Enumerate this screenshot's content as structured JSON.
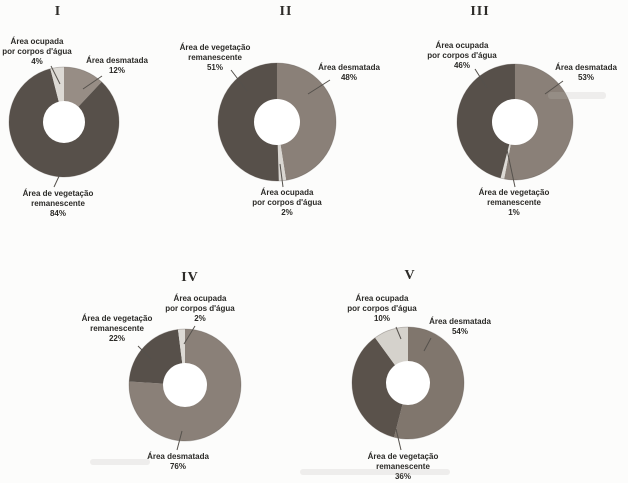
{
  "page": {
    "background": "#fcfcfb",
    "categories": [
      "Área desmatada",
      "Área de vegetação remanescente",
      "Área ocupada por corpos d'água"
    ]
  },
  "chart_data": [
    {
      "type": "donut",
      "title": "I",
      "unit": "%",
      "slices": [
        {
          "label": "Área desmatada",
          "value": 12,
          "color": "#978d85"
        },
        {
          "label": "Área de vegetação remanescente",
          "value": 84,
          "color": "#57504a"
        },
        {
          "label": "Área ocupada por corpos d'água",
          "value": 4,
          "color": "#dcd9d4"
        }
      ],
      "callouts": [
        {
          "text": "Área ocupada\npor corpos d'água\n4%"
        },
        {
          "text": "Área desmatada\n12%"
        },
        {
          "text": "Área de vegetação\nremanescente\n84%"
        }
      ]
    },
    {
      "type": "donut",
      "title": "II",
      "unit": "%",
      "slices": [
        {
          "label": "Área desmatada",
          "value": 48,
          "color": "#8a8078"
        },
        {
          "label": "Área ocupada por corpos d'água",
          "value": 2,
          "color": "#d9d6d1"
        },
        {
          "label": "Área de vegetação remanescente",
          "value": 51,
          "color": "#57504a"
        }
      ],
      "callouts": [
        {
          "text": "Área de vegetação\nremanescente\n51%"
        },
        {
          "text": "Área desmatada\n48%"
        },
        {
          "text": "Área ocupada\npor corpos d'água\n2%"
        }
      ]
    },
    {
      "type": "donut",
      "title": "III",
      "unit": "%",
      "slices": [
        {
          "label": "Área desmatada",
          "value": 53,
          "color": "#8a8078"
        },
        {
          "label": "Área de vegetação remanescente",
          "value": 1,
          "color": "#dcd9d4"
        },
        {
          "label": "Área ocupada por corpos d'água",
          "value": 46,
          "color": "#57504a"
        }
      ],
      "callouts": [
        {
          "text": "Área ocupada\npor corpos d'água\n46%"
        },
        {
          "text": "Área desmatada\n53%"
        },
        {
          "text": "Área de vegetação\nremanescente\n1%"
        }
      ]
    },
    {
      "type": "donut",
      "title": "IV",
      "unit": "%",
      "slices": [
        {
          "label": "Área desmatada",
          "value": 76,
          "color": "#8a8078"
        },
        {
          "label": "Área de vegetação remanescente",
          "value": 22,
          "color": "#57504a"
        },
        {
          "label": "Área ocupada por corpos d'água",
          "value": 2,
          "color": "#dcd9d4"
        }
      ],
      "callouts": [
        {
          "text": "Área ocupada\npor corpos d'água\n2%"
        },
        {
          "text": "Área de vegetação\nremanescente\n22%"
        },
        {
          "text": "Área desmatada\n76%"
        }
      ]
    },
    {
      "type": "donut",
      "title": "V",
      "unit": "%",
      "slices": [
        {
          "label": "Área desmatada",
          "value": 54,
          "color": "#80766d"
        },
        {
          "label": "Área de vegetação remanescente",
          "value": 36,
          "color": "#5a524b"
        },
        {
          "label": "Área ocupada por corpos d'água",
          "value": 10,
          "color": "#d5d2cc"
        }
      ],
      "callouts": [
        {
          "text": "Área ocupada\npor corpos d'água\n10%"
        },
        {
          "text": "Área desmatada\n54%"
        },
        {
          "text": "Área de vegetação\nremanescente\n36%"
        }
      ]
    }
  ]
}
